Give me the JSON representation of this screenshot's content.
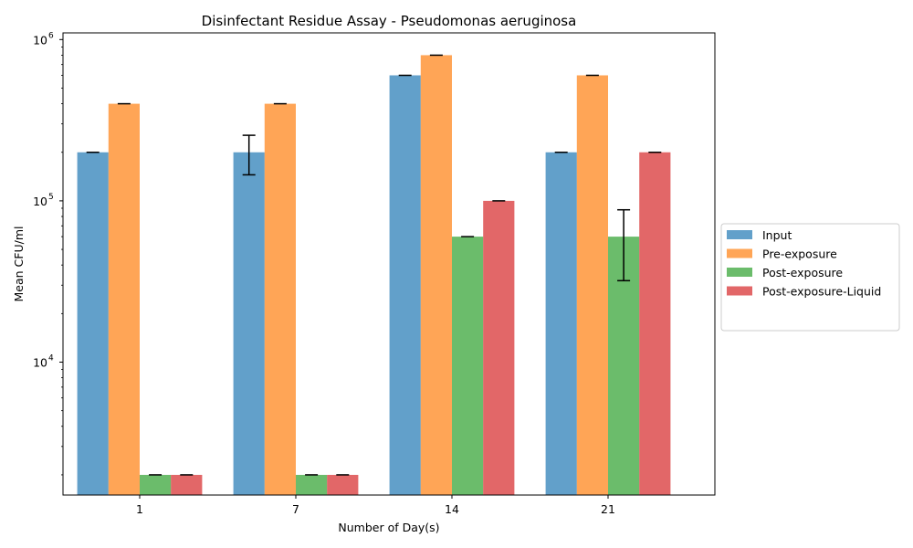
{
  "chart_data": {
    "type": "bar",
    "title": "Disinfectant Residue Assay - Pseudomonas aeruginosa",
    "xlabel": "Number of Day(s)",
    "ylabel": "Mean CFU/ml",
    "y_scale": "log",
    "ylim": [
      1500,
      1100000
    ],
    "categories": [
      "1",
      "7",
      "14",
      "21"
    ],
    "y_tick_labels": [
      {
        "value": 10000,
        "base": "10",
        "exp": "4"
      },
      {
        "value": 100000,
        "base": "10",
        "exp": "5"
      },
      {
        "value": 1000000,
        "base": "10",
        "exp": "6"
      }
    ],
    "series": [
      {
        "name": "Input",
        "color": "#1f77b4",
        "values": [
          200000,
          200000,
          600000,
          200000
        ],
        "errors": [
          0,
          55000,
          0,
          0
        ]
      },
      {
        "name": "Pre-exposure",
        "color": "#ff7f0e",
        "values": [
          400000,
          400000,
          800000,
          600000
        ],
        "errors": [
          0,
          0,
          0,
          0
        ]
      },
      {
        "name": "Post-exposure",
        "color": "#2ca02c",
        "values": [
          2000,
          2000,
          60000,
          60000
        ],
        "errors": [
          0,
          0,
          0,
          28000
        ]
      },
      {
        "name": "Post-exposure-Liquid",
        "color": "#d62728",
        "values": [
          2000,
          2000,
          100000,
          200000
        ],
        "errors": [
          0,
          0,
          0,
          0
        ]
      }
    ],
    "bar_alpha": 0.7,
    "legend_position": "center-right-outside",
    "grid": false
  }
}
